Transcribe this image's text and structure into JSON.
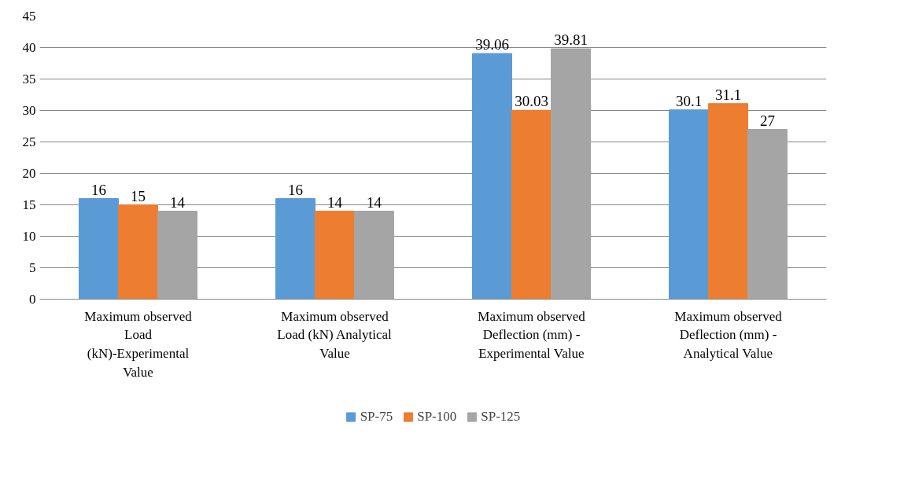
{
  "chart_data": {
    "type": "bar",
    "categories": [
      "Maximum observed Load (kN)-Experimental Value",
      "Maximum observed Load (kN) Analytical Value",
      "Maximum observed Deflection (mm) - Experimental Value",
      "Maximum observed Deflection (mm) - Analytical Value"
    ],
    "series": [
      {
        "name": "SP-75",
        "color": "#5b9bd5",
        "values": [
          16,
          16,
          39.06,
          30.1
        ]
      },
      {
        "name": "SP-100",
        "color": "#ed7d31",
        "values": [
          15,
          14,
          30.03,
          31.1
        ]
      },
      {
        "name": "SP-125",
        "color": "#a5a5a5",
        "values": [
          14,
          14,
          39.81,
          27
        ]
      }
    ],
    "ylim": [
      0,
      45
    ],
    "yticks": [
      0,
      5,
      10,
      15,
      20,
      25,
      30,
      35,
      40,
      45
    ],
    "grid": "y",
    "legend": "bottom",
    "data_labels": true
  }
}
